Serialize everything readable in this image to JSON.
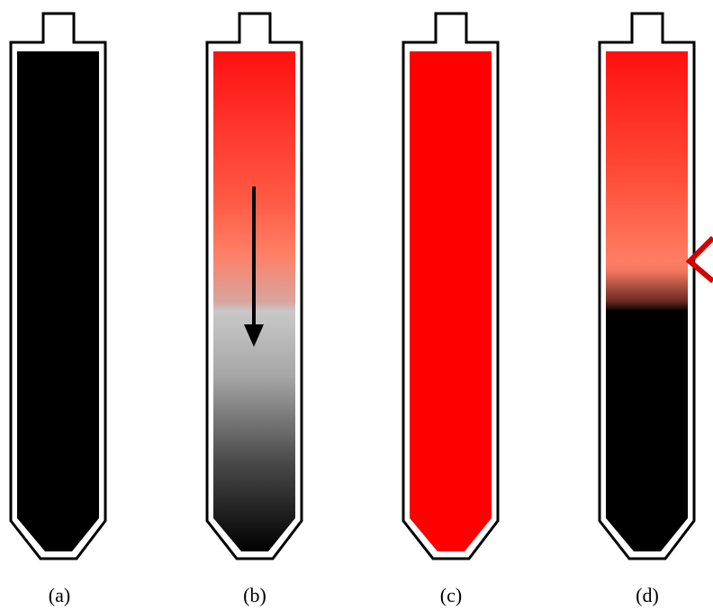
{
  "panels": [
    {
      "id": "a",
      "label": "(a)",
      "fill": "black",
      "arrow": false,
      "marker": false
    },
    {
      "id": "b",
      "label": "(b)",
      "fill": "red-to-gray-to-black",
      "arrow": true,
      "marker": false
    },
    {
      "id": "c",
      "label": "(c)",
      "fill": "red",
      "arrow": false,
      "marker": false
    },
    {
      "id": "d",
      "label": "(d)",
      "fill": "red-over-black",
      "arrow": false,
      "marker": true
    }
  ],
  "colors": {
    "outline": "#000000",
    "red": "#ff0000",
    "salmon": "#ff7e63",
    "gray": "#c8c8c8",
    "black": "#000000",
    "marker": "#d40000"
  },
  "icons": {
    "arrow": "down-arrow-icon",
    "marker": "left-chevron-icon"
  }
}
